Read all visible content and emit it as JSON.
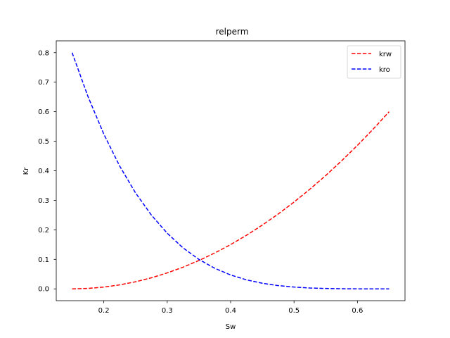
{
  "chart_data": {
    "type": "line",
    "title": "relperm",
    "xlabel": "Sw",
    "ylabel": "Kr",
    "xlim": [
      0.125,
      0.675
    ],
    "ylim": [
      -0.04,
      0.84
    ],
    "xticks": [
      0.2,
      0.3,
      0.4,
      0.5,
      0.6
    ],
    "xtick_labels": [
      "0.2",
      "0.3",
      "0.4",
      "0.5",
      "0.6"
    ],
    "yticks": [
      0.0,
      0.1,
      0.2,
      0.3,
      0.4,
      0.5,
      0.6,
      0.7,
      0.8
    ],
    "ytick_labels": [
      "0.0",
      "0.1",
      "0.2",
      "0.3",
      "0.4",
      "0.5",
      "0.6",
      "0.7",
      "0.8"
    ],
    "grid": false,
    "legend_position": "top-right",
    "series": [
      {
        "name": "krw",
        "color": "#ff0000",
        "style": "dashed",
        "x": [
          0.15,
          0.175,
          0.2,
          0.225,
          0.25,
          0.275,
          0.3,
          0.325,
          0.35,
          0.375,
          0.4,
          0.425,
          0.45,
          0.475,
          0.5,
          0.525,
          0.55,
          0.575,
          0.6,
          0.625,
          0.65
        ],
        "y": [
          0.0,
          0.0015,
          0.006,
          0.0135,
          0.024,
          0.0375,
          0.054,
          0.0735,
          0.096,
          0.1215,
          0.15,
          0.1815,
          0.216,
          0.2535,
          0.294,
          0.3375,
          0.384,
          0.4335,
          0.486,
          0.5415,
          0.6
        ]
      },
      {
        "name": "kro",
        "color": "#0000ff",
        "style": "dashed",
        "x": [
          0.15,
          0.175,
          0.2,
          0.225,
          0.25,
          0.275,
          0.3,
          0.325,
          0.35,
          0.375,
          0.4,
          0.425,
          0.45,
          0.475,
          0.5,
          0.525,
          0.55,
          0.575,
          0.6,
          0.625,
          0.65
        ],
        "y": [
          0.8,
          0.6516,
          0.5242,
          0.416,
          0.3251,
          0.25,
          0.1884,
          0.1388,
          0.0998,
          0.0697,
          0.0471,
          0.0306,
          0.019,
          0.0111,
          0.0061,
          0.003,
          0.0013,
          0.0005,
          0.0001,
          0.0,
          0.0
        ]
      }
    ]
  }
}
